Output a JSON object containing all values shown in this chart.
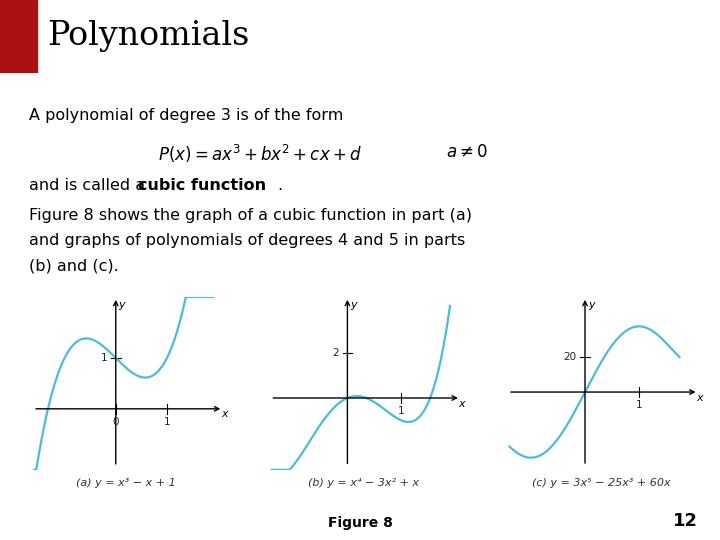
{
  "title": "Polynomials",
  "title_bg_color": "#F5E6C8",
  "title_color": "#000000",
  "red_square_color": "#AA1111",
  "bg_color": "#FFFFFF",
  "line1": "A polynomial of degree 3 is of the form",
  "line3_pre": "and is called a ",
  "line3_bold": "cubic function",
  "line3_post": ".",
  "line4": "Figure 8 shows the graph of a cubic function in part (a)",
  "line5": "and graphs of polynomials of degrees 4 and 5 in parts",
  "line6": "(b) and (c).",
  "caption_a": "(a) y = x³ − x + 1",
  "caption_b": "(b) y = x⁴ − 3x² + x",
  "caption_c": "(c) y = 3x⁵ − 25x³ + 60x",
  "figure_caption": "Figure 8",
  "page_number": "12",
  "curve_color": "#4DBBDA",
  "axis_color": "#000000"
}
